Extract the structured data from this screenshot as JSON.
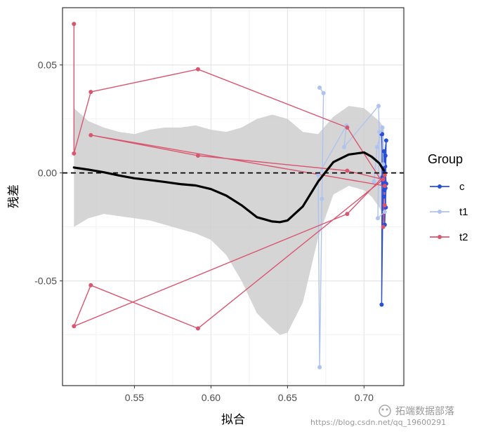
{
  "chart_data": {
    "type": "line",
    "xlabel": "拟合",
    "ylabel": "残差",
    "xlim": [
      0.503,
      0.726
    ],
    "ylim": [
      -0.0985,
      0.0765
    ],
    "xticks": [
      0.55,
      0.6,
      0.65,
      0.7
    ],
    "xtick_labels": [
      "0.55",
      "0.60",
      "0.65",
      "0.70"
    ],
    "yticks": [
      -0.05,
      0.0,
      0.05
    ],
    "ytick_labels": [
      "-0.05",
      "0.00",
      "0.05"
    ],
    "reference_line_y": 0,
    "legend": {
      "title": "Group",
      "position": "right"
    },
    "series": [
      {
        "name": "c",
        "color": "#2a4fd6",
        "points": [
          [
            0.7115,
            0.018
          ],
          [
            0.7125,
            -0.005
          ],
          [
            0.7135,
            0.0
          ],
          [
            0.712,
            -0.002
          ],
          [
            0.7145,
            0.015
          ],
          [
            0.714,
            -0.007
          ],
          [
            0.713,
            0.01
          ],
          [
            0.7135,
            -0.024
          ],
          [
            0.7145,
            -0.005
          ],
          [
            0.7138,
            0.003
          ],
          [
            0.7142,
            -0.016
          ],
          [
            0.7125,
            -0.004
          ],
          [
            0.7115,
            -0.061
          ],
          [
            0.7118,
            0.018
          ],
          [
            0.713,
            -0.011
          ],
          [
            0.714,
            0.008
          ],
          [
            0.7133,
            -0.008
          ],
          [
            0.7127,
            0.002
          ]
        ]
      },
      {
        "name": "t1",
        "color": "#aec3f0",
        "points": [
          [
            0.671,
            0.0395
          ],
          [
            0.6735,
            0.037
          ],
          [
            0.6725,
            -0.012
          ],
          [
            0.671,
            -0.09
          ],
          [
            0.67,
            -0.001
          ],
          [
            0.6885,
            0.022
          ],
          [
            0.687,
            0.012
          ],
          [
            0.7095,
            0.031
          ],
          [
            0.71,
            0.019
          ],
          [
            0.709,
            -0.021
          ],
          [
            0.7135,
            -0.018
          ],
          [
            0.7125,
            0.004
          ],
          [
            0.712,
            0.021
          ],
          [
            0.7085,
            0.012
          ],
          [
            0.7065,
            -0.004
          ]
        ]
      },
      {
        "name": "t2",
        "color": "#d95670",
        "points": [
          [
            0.5105,
            0.069
          ],
          [
            0.5105,
            0.009
          ],
          [
            0.5215,
            0.0375
          ],
          [
            0.5915,
            0.048
          ],
          [
            0.689,
            0.021
          ],
          [
            0.7135,
            -0.006
          ],
          [
            0.5215,
            0.0175
          ],
          [
            0.5915,
            0.008
          ],
          [
            0.689,
            0.001
          ],
          [
            0.7125,
            -0.003
          ],
          [
            0.5915,
            -0.072
          ],
          [
            0.5215,
            -0.052
          ],
          [
            0.5105,
            -0.071
          ],
          [
            0.689,
            -0.019
          ],
          [
            0.7135,
            -0.001
          ],
          [
            0.7125,
            -0.025
          ],
          [
            0.7135,
            -0.015
          ]
        ]
      }
    ],
    "smooth": {
      "color": "#000000",
      "band_color": "#cccccc",
      "x": [
        0.5105,
        0.52,
        0.53,
        0.54,
        0.55,
        0.56,
        0.57,
        0.58,
        0.59,
        0.6,
        0.61,
        0.62,
        0.63,
        0.64,
        0.645,
        0.65,
        0.66,
        0.67,
        0.68,
        0.69,
        0.7,
        0.705,
        0.71,
        0.713
      ],
      "y": [
        0.0025,
        0.0015,
        0.0003,
        -0.0012,
        -0.0025,
        -0.0033,
        -0.0042,
        -0.0052,
        -0.0058,
        -0.0075,
        -0.0105,
        -0.015,
        -0.0205,
        -0.0225,
        -0.0228,
        -0.022,
        -0.0155,
        -0.004,
        0.005,
        0.0085,
        0.0095,
        0.0075,
        0.0045,
        0.001
      ],
      "lower": [
        -0.025,
        -0.021,
        -0.019,
        -0.02,
        -0.021,
        -0.022,
        -0.024,
        -0.026,
        -0.028,
        -0.031,
        -0.038,
        -0.05,
        -0.065,
        -0.072,
        -0.075,
        -0.074,
        -0.06,
        -0.03,
        -0.01,
        -0.006,
        -0.008,
        -0.011,
        -0.016,
        -0.02
      ],
      "upper": [
        0.03,
        0.024,
        0.021,
        0.019,
        0.018,
        0.02,
        0.021,
        0.021,
        0.022,
        0.02,
        0.019,
        0.021,
        0.025,
        0.027,
        0.026,
        0.025,
        0.019,
        0.018,
        0.026,
        0.031,
        0.03,
        0.027,
        0.024,
        0.021
      ]
    }
  },
  "watermark": {
    "logo_text": "拓端数据部落",
    "url": "https://blog.csdn.net/qq_19600291"
  }
}
